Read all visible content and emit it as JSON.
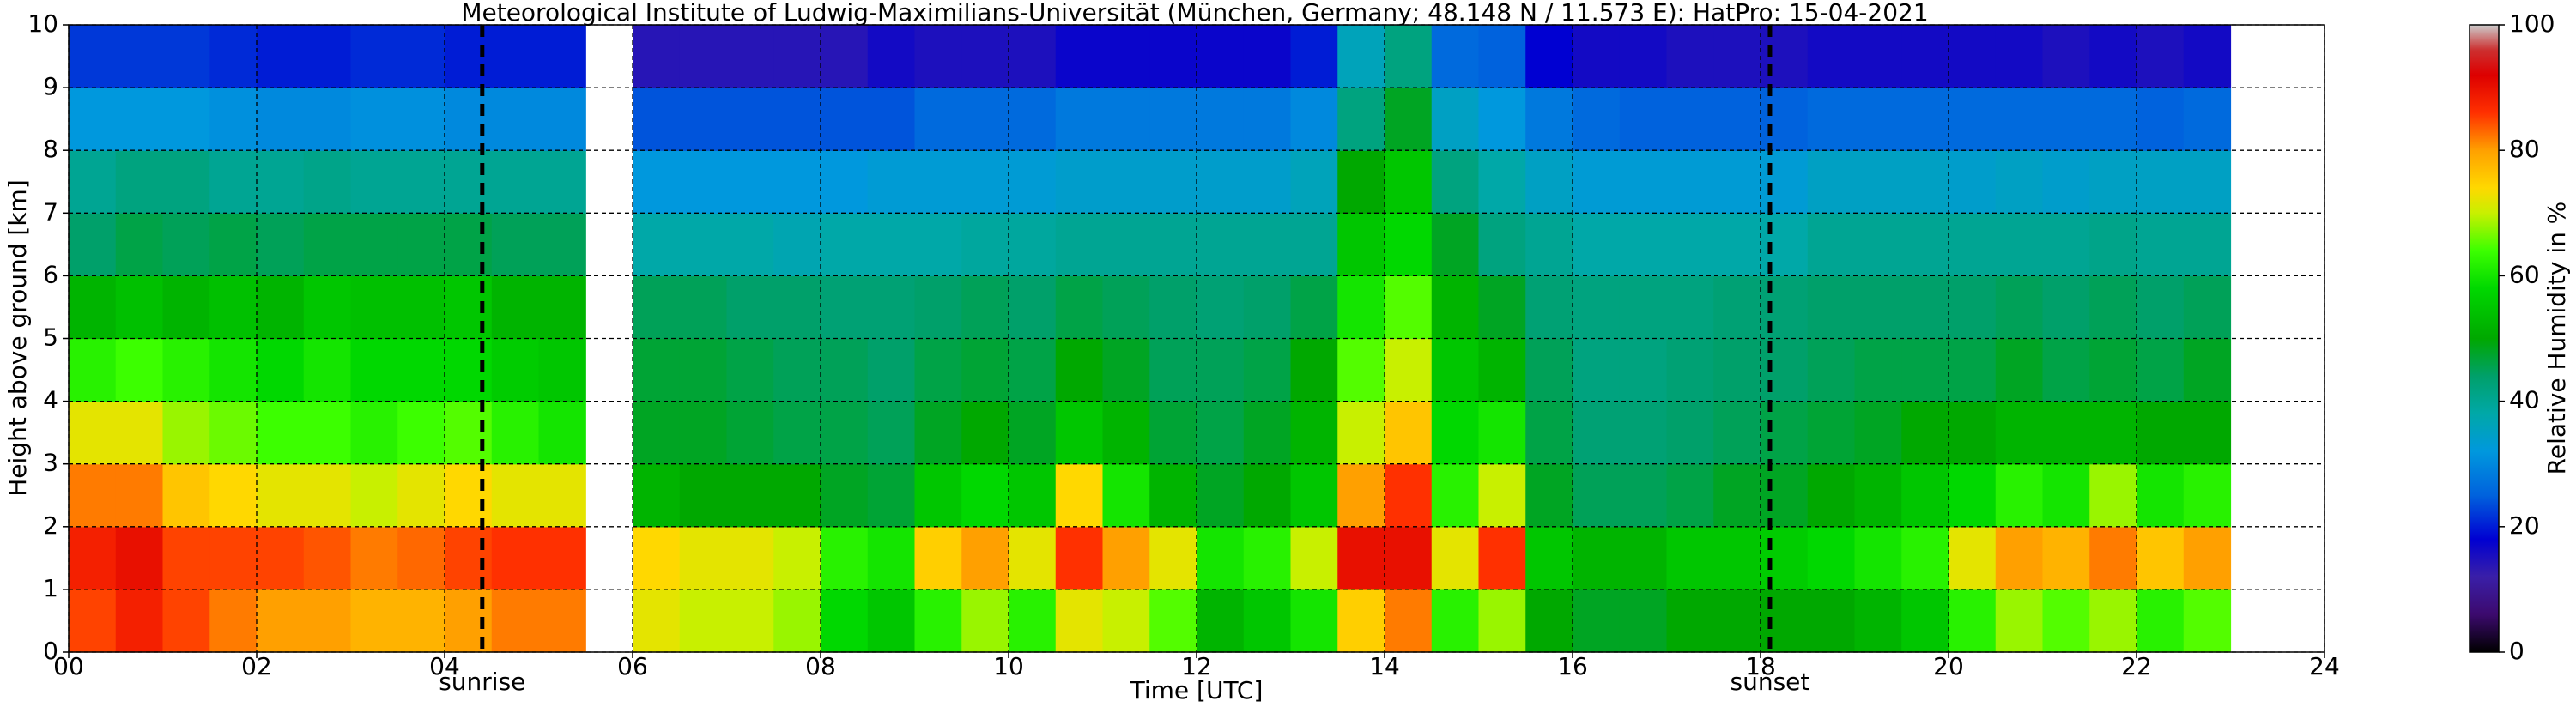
{
  "chart_data": {
    "type": "heatmap",
    "title": "Meteorological Institute of Ludwig-Maximilians-Universität (München, Germany; 48.148 N / 11.573 E):    HatPro: 15-04-2021",
    "x_label": "Time [UTC]",
    "y_label": "Height above ground [km]",
    "xlim": [
      0,
      24
    ],
    "ylim": [
      0,
      10
    ],
    "xticks": [
      {
        "value": 0,
        "label": "00"
      },
      {
        "value": 2,
        "label": "02"
      },
      {
        "value": 4,
        "label": "04"
      },
      {
        "value": 6,
        "label": "06"
      },
      {
        "value": 8,
        "label": "08"
      },
      {
        "value": 10,
        "label": "10"
      },
      {
        "value": 12,
        "label": "12"
      },
      {
        "value": 14,
        "label": "14"
      },
      {
        "value": 16,
        "label": "16"
      },
      {
        "value": 18,
        "label": "18"
      },
      {
        "value": 20,
        "label": "20"
      },
      {
        "value": 22,
        "label": "22"
      },
      {
        "value": 24,
        "label": "24"
      }
    ],
    "yticks": [
      0,
      1,
      2,
      3,
      4,
      5,
      6,
      7,
      8,
      9,
      10
    ],
    "grid": true,
    "xbins": [
      0,
      0.5,
      1,
      1.5,
      2,
      2.5,
      3,
      3.5,
      4,
      4.5,
      5,
      5.5,
      6,
      6.5,
      7,
      7.5,
      8,
      8.5,
      9,
      9.5,
      10,
      10.5,
      11,
      11.5,
      12,
      12.5,
      13,
      13.5,
      14,
      14.5,
      15,
      15.5,
      16,
      16.5,
      17,
      17.5,
      18,
      18.5,
      19,
      19.5,
      20,
      20.5,
      21,
      21.5,
      22,
      22.5,
      23,
      23.5,
      24
    ],
    "ybins": [
      0,
      1,
      2,
      3,
      4,
      5,
      6,
      7,
      8,
      9,
      10
    ],
    "z": [
      [
        85,
        88,
        85,
        82,
        80,
        80,
        78,
        78,
        80,
        82,
        82,
        null,
        72,
        70,
        70,
        68,
        58,
        55,
        62,
        68,
        62,
        72,
        70,
        65,
        52,
        55,
        60,
        75,
        82,
        62,
        68,
        50,
        48,
        48,
        50,
        50,
        50,
        50,
        52,
        55,
        62,
        68,
        65,
        68,
        62,
        65,
        null,
        null
      ],
      [
        88,
        90,
        85,
        85,
        85,
        84,
        82,
        83,
        85,
        86,
        86,
        null,
        74,
        72,
        72,
        70,
        62,
        60,
        75,
        80,
        72,
        86,
        80,
        72,
        60,
        62,
        70,
        90,
        90,
        72,
        86,
        55,
        52,
        52,
        55,
        55,
        56,
        58,
        60,
        62,
        72,
        80,
        78,
        82,
        76,
        80,
        null,
        null
      ],
      [
        82,
        82,
        76,
        74,
        72,
        72,
        70,
        72,
        74,
        72,
        72,
        null,
        52,
        50,
        50,
        50,
        48,
        47,
        55,
        58,
        55,
        74,
        60,
        52,
        48,
        50,
        55,
        80,
        86,
        62,
        70,
        48,
        45,
        45,
        46,
        48,
        48,
        50,
        52,
        55,
        58,
        62,
        60,
        68,
        60,
        62,
        null,
        null
      ],
      [
        72,
        72,
        68,
        66,
        64,
        64,
        62,
        64,
        65,
        62,
        60,
        null,
        48,
        48,
        47,
        46,
        46,
        45,
        48,
        50,
        48,
        55,
        52,
        47,
        46,
        48,
        52,
        70,
        76,
        58,
        60,
        46,
        43,
        43,
        44,
        45,
        46,
        47,
        48,
        50,
        50,
        52,
        52,
        52,
        50,
        50,
        null,
        null
      ],
      [
        62,
        64,
        62,
        60,
        58,
        60,
        58,
        58,
        58,
        56,
        55,
        null,
        47,
        47,
        46,
        45,
        45,
        44,
        46,
        47,
        46,
        50,
        48,
        45,
        45,
        46,
        50,
        65,
        70,
        55,
        52,
        45,
        42,
        42,
        43,
        44,
        44,
        45,
        46,
        46,
        46,
        48,
        46,
        47,
        46,
        48,
        null,
        null
      ],
      [
        52,
        54,
        52,
        54,
        52,
        55,
        54,
        54,
        55,
        52,
        52,
        null,
        45,
        45,
        44,
        44,
        43,
        43,
        44,
        45,
        44,
        46,
        45,
        44,
        43,
        44,
        46,
        60,
        65,
        52,
        48,
        43,
        42,
        42,
        42,
        43,
        43,
        44,
        44,
        44,
        44,
        45,
        44,
        45,
        44,
        45,
        null,
        null
      ],
      [
        44,
        46,
        45,
        46,
        45,
        46,
        46,
        46,
        46,
        45,
        45,
        null,
        38,
        38,
        38,
        37,
        38,
        38,
        38,
        39,
        39,
        40,
        40,
        40,
        40,
        40,
        40,
        55,
        58,
        48,
        42,
        40,
        38,
        38,
        38,
        38,
        38,
        40,
        40,
        40,
        40,
        40,
        40,
        41,
        40,
        40,
        null,
        null
      ],
      [
        40,
        42,
        42,
        40,
        40,
        41,
        40,
        40,
        40,
        40,
        40,
        null,
        32,
        32,
        32,
        32,
        32,
        33,
        33,
        33,
        33,
        34,
        34,
        34,
        34,
        34,
        36,
        50,
        55,
        42,
        38,
        35,
        33,
        33,
        33,
        33,
        33,
        35,
        35,
        35,
        34,
        35,
        34,
        35,
        35,
        35,
        null,
        null
      ],
      [
        32,
        32,
        32,
        31,
        30,
        30,
        31,
        31,
        30,
        30,
        30,
        null,
        24,
        24,
        24,
        24,
        24,
        24,
        26,
        26,
        26,
        28,
        28,
        28,
        28,
        28,
        30,
        42,
        48,
        35,
        32,
        28,
        26,
        25,
        25,
        25,
        25,
        26,
        26,
        26,
        26,
        26,
        26,
        26,
        25,
        26,
        null,
        null
      ],
      [
        22,
        22,
        22,
        21,
        20,
        20,
        21,
        21,
        20,
        20,
        20,
        null,
        14,
        14,
        14,
        14,
        14,
        16,
        15,
        15,
        15,
        17,
        17,
        17,
        17,
        17,
        20,
        36,
        42,
        26,
        25,
        18,
        16,
        16,
        15,
        15,
        15,
        16,
        16,
        16,
        16,
        16,
        15,
        16,
        15,
        16,
        null,
        null
      ]
    ],
    "markers": [
      {
        "x": 4.4,
        "label": "sunrise"
      },
      {
        "x": 18.1,
        "label": "sunset"
      }
    ],
    "colorbar": {
      "label": "Relative Humidity in %",
      "lim": [
        0,
        100
      ],
      "ticks": [
        0,
        20,
        40,
        60,
        80,
        100
      ]
    },
    "colormap": [
      [
        0,
        "#000000"
      ],
      [
        6,
        "#3c0a6e"
      ],
      [
        12,
        "#3a1fa8"
      ],
      [
        18,
        "#0000d2"
      ],
      [
        25,
        "#0062dd"
      ],
      [
        32,
        "#0098dd"
      ],
      [
        38,
        "#00a8a8"
      ],
      [
        44,
        "#00a06a"
      ],
      [
        50,
        "#00a800"
      ],
      [
        58,
        "#00d800"
      ],
      [
        64,
        "#3cff00"
      ],
      [
        70,
        "#c8f000"
      ],
      [
        74,
        "#ffd800"
      ],
      [
        80,
        "#ffa000"
      ],
      [
        86,
        "#ff3000"
      ],
      [
        92,
        "#dd0000"
      ],
      [
        96,
        "#cc3030"
      ],
      [
        100,
        "#cccccc"
      ]
    ]
  }
}
